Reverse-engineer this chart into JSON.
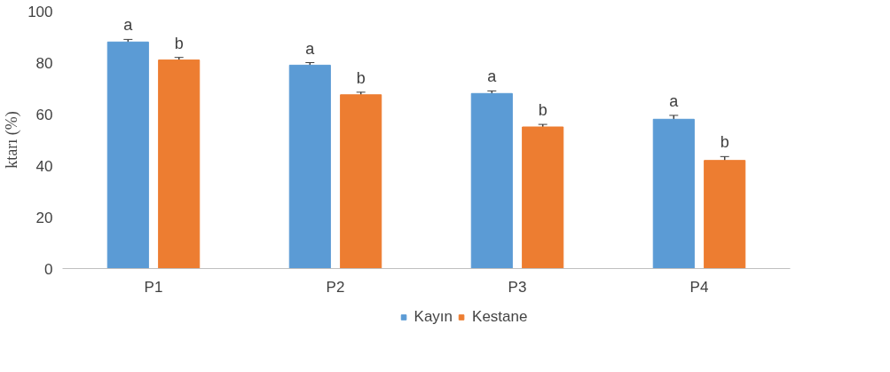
{
  "chart_data": {
    "type": "bar",
    "ylabel": "ktarı (%)",
    "categories": [
      "P1",
      "P2",
      "P3",
      "P4"
    ],
    "series": [
      {
        "name": "Kayın",
        "color": "#5b9bd5",
        "values": [
          88,
          79,
          68,
          58
        ],
        "errors": [
          1,
          1,
          1,
          1.5
        ],
        "value_labels": [
          "a",
          "a",
          "a",
          "a"
        ]
      },
      {
        "name": "Kestane",
        "color": "#ed7d31",
        "values": [
          81,
          67.5,
          55,
          42
        ],
        "errors": [
          1,
          1,
          1,
          1.5
        ],
        "value_labels": [
          "b",
          "b",
          "b",
          "b"
        ]
      }
    ],
    "ylim": [
      0,
      100
    ],
    "yticks": [
      0,
      20,
      40,
      60,
      80,
      100
    ],
    "grid": false,
    "legend": "bottom"
  }
}
